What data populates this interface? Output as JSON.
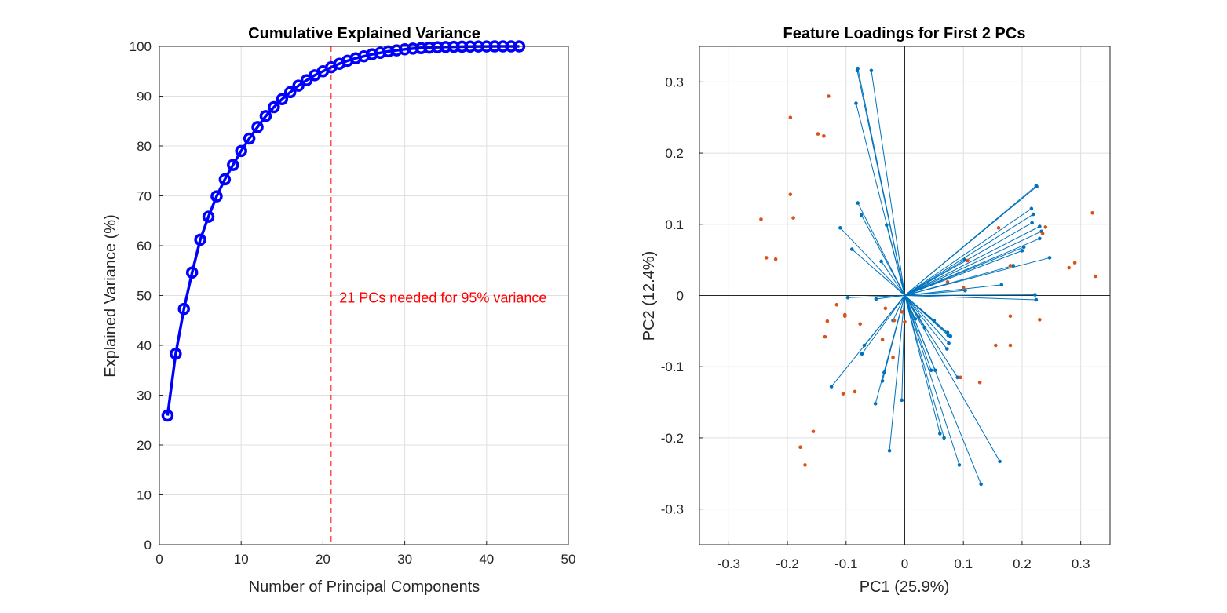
{
  "chart_data": [
    {
      "type": "line",
      "title": "Cumulative Explained Variance",
      "xlabel": "Number of Principal Components",
      "ylabel": "Explained Variance (%)",
      "xlim": [
        0,
        50
      ],
      "ylim": [
        0,
        100
      ],
      "xticks": [
        0,
        10,
        20,
        30,
        40,
        50
      ],
      "yticks": [
        0,
        10,
        20,
        30,
        40,
        50,
        60,
        70,
        80,
        90,
        100
      ],
      "grid": true,
      "series": [
        {
          "marker": "circle",
          "color": "#0000ff",
          "x": [
            1,
            2,
            3,
            4,
            5,
            6,
            7,
            8,
            9,
            10,
            11,
            12,
            13,
            14,
            15,
            16,
            17,
            18,
            19,
            20,
            21,
            22,
            23,
            24,
            25,
            26,
            27,
            28,
            29,
            30,
            31,
            32,
            33,
            34,
            35,
            36,
            37,
            38,
            39,
            40,
            41,
            42,
            43,
            44
          ],
          "y": [
            25.9,
            38.3,
            47.3,
            54.6,
            61.2,
            65.8,
            69.9,
            73.3,
            76.2,
            79.0,
            81.5,
            83.8,
            86.0,
            87.8,
            89.4,
            90.8,
            92.1,
            93.2,
            94.2,
            95.0,
            95.8,
            96.5,
            97.1,
            97.6,
            98.0,
            98.4,
            98.7,
            99.0,
            99.2,
            99.4,
            99.55,
            99.65,
            99.75,
            99.82,
            99.87,
            99.91,
            99.94,
            99.96,
            99.98,
            99.99,
            100,
            100,
            100,
            100
          ]
        }
      ],
      "reference_line": {
        "orientation": "vertical",
        "x": 21,
        "style": "dashed",
        "color": "#ff0000"
      },
      "annotations": [
        {
          "text": "21 PCs needed for 95% variance",
          "x": 22,
          "y": 49.5,
          "color": "#ff0000"
        }
      ]
    },
    {
      "type": "scatter",
      "title": "Feature Loadings for First 2 PCs",
      "xlabel": "PC1 (25.9%)",
      "ylabel": "PC2 (12.4%)",
      "xlim": [
        -0.35,
        0.35
      ],
      "ylim": [
        -0.35,
        0.35
      ],
      "xticks": [
        -0.3,
        -0.2,
        -0.1,
        0,
        0.1,
        0.2,
        0.3
      ],
      "yticks": [
        -0.3,
        -0.2,
        -0.1,
        0,
        0.1,
        0.2,
        0.3
      ],
      "grid": true,
      "origin_axes": true,
      "loadings": {
        "color": "#0072bd",
        "points": [
          [
            -0.081,
            0.316
          ],
          [
            -0.057,
            0.316
          ],
          [
            -0.08,
            0.319
          ],
          [
            -0.083,
            0.27
          ],
          [
            0.224,
            0.154
          ],
          [
            0.225,
            0.153
          ],
          [
            0.216,
            0.122
          ],
          [
            0.219,
            0.114
          ],
          [
            0.23,
            0.097
          ],
          [
            0.217,
            0.102
          ],
          [
            0.233,
            0.09
          ],
          [
            0.23,
            0.08
          ],
          [
            0.203,
            0.068
          ],
          [
            0.2,
            0.063
          ],
          [
            0.247,
            0.053
          ],
          [
            0.185,
            0.042
          ],
          [
            0.102,
            0.05
          ],
          [
            0.165,
            0.015
          ],
          [
            0.103,
            0.007
          ],
          [
            0.222,
            0.001
          ],
          [
            0.224,
            -0.006
          ],
          [
            -0.08,
            0.13
          ],
          [
            -0.074,
            0.113
          ],
          [
            -0.11,
            0.095
          ],
          [
            -0.031,
            0.099
          ],
          [
            -0.09,
            0.065
          ],
          [
            -0.04,
            0.048
          ],
          [
            -0.097,
            -0.003
          ],
          [
            -0.049,
            -0.005
          ],
          [
            -0.073,
            -0.082
          ],
          [
            -0.069,
            -0.07
          ],
          [
            -0.02,
            -0.035
          ],
          [
            -0.038,
            -0.12
          ],
          [
            -0.125,
            -0.128
          ],
          [
            -0.026,
            -0.218
          ],
          [
            -0.05,
            -0.152
          ],
          [
            -0.005,
            -0.147
          ],
          [
            -0.035,
            -0.108
          ],
          [
            0.018,
            -0.033
          ],
          [
            0.024,
            -0.03
          ],
          [
            0.073,
            -0.052
          ],
          [
            0.074,
            -0.056
          ],
          [
            0.078,
            -0.057
          ],
          [
            0.075,
            -0.067
          ],
          [
            0.072,
            -0.075
          ],
          [
            0.045,
            -0.105
          ],
          [
            0.052,
            -0.105
          ],
          [
            0.06,
            -0.194
          ],
          [
            0.067,
            -0.2
          ],
          [
            0.093,
            -0.238
          ],
          [
            0.13,
            -0.265
          ],
          [
            0.162,
            -0.233
          ],
          [
            0.05,
            -0.035
          ],
          [
            0.034,
            -0.045
          ],
          [
            0.09,
            -0.115
          ]
        ]
      },
      "scores": {
        "color": "#d95319",
        "points": [
          [
            -0.13,
            0.28
          ],
          [
            -0.195,
            0.25
          ],
          [
            -0.148,
            0.227
          ],
          [
            -0.138,
            0.224
          ],
          [
            -0.195,
            0.142
          ],
          [
            -0.19,
            0.109
          ],
          [
            -0.245,
            0.107
          ],
          [
            -0.236,
            0.053
          ],
          [
            -0.22,
            0.051
          ],
          [
            0.32,
            0.116
          ],
          [
            0.29,
            0.046
          ],
          [
            0.28,
            0.039
          ],
          [
            0.325,
            0.027
          ],
          [
            0.24,
            0.096
          ],
          [
            0.235,
            0.087
          ],
          [
            0.16,
            0.095
          ],
          [
            0.18,
            0.042
          ],
          [
            0.107,
            0.049
          ],
          [
            0.073,
            0.019
          ],
          [
            0.1,
            0.011
          ],
          [
            0.18,
            -0.029
          ],
          [
            0.23,
            -0.034
          ],
          [
            0.155,
            -0.07
          ],
          [
            0.18,
            -0.07
          ],
          [
            0.128,
            -0.122
          ],
          [
            0.095,
            -0.115
          ],
          [
            -0.116,
            -0.013
          ],
          [
            -0.132,
            -0.036
          ],
          [
            -0.102,
            -0.027
          ],
          [
            -0.102,
            -0.029
          ],
          [
            -0.076,
            -0.04
          ],
          [
            -0.136,
            -0.058
          ],
          [
            -0.038,
            -0.062
          ],
          [
            -0.02,
            -0.087
          ],
          [
            -0.085,
            -0.135
          ],
          [
            -0.105,
            -0.138
          ],
          [
            -0.018,
            -0.035
          ],
          [
            -0.005,
            -0.023
          ],
          [
            0.0,
            -0.037
          ],
          [
            -0.033,
            -0.018
          ],
          [
            -0.156,
            -0.191
          ],
          [
            -0.178,
            -0.213
          ],
          [
            -0.17,
            -0.238
          ]
        ]
      }
    }
  ]
}
